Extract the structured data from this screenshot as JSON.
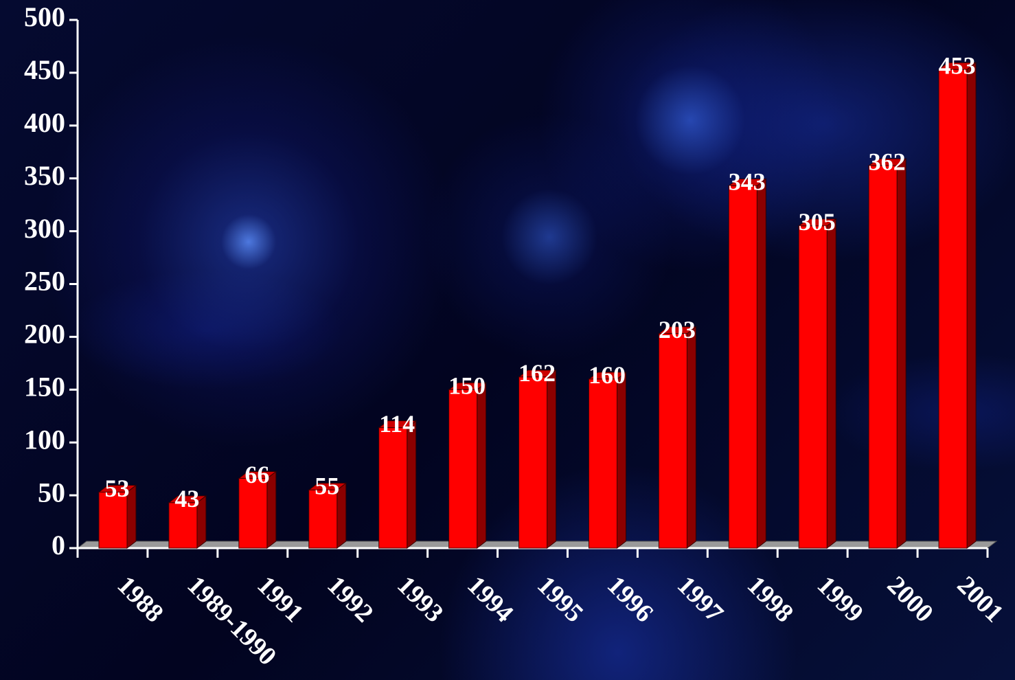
{
  "chart_data": {
    "type": "bar3d",
    "categories": [
      "1988",
      "1989-1990",
      "1991",
      "1992",
      "1993",
      "1994",
      "1995",
      "1996",
      "1997",
      "1998",
      "1999",
      "2000",
      "2001"
    ],
    "values": [
      53,
      43,
      66,
      55,
      114,
      150,
      162,
      160,
      203,
      343,
      305,
      362,
      453
    ],
    "color": "#ff0000",
    "ylim": [
      0,
      500
    ],
    "yticks": [
      0,
      50,
      100,
      150,
      200,
      250,
      300,
      350,
      400,
      450,
      500
    ]
  }
}
